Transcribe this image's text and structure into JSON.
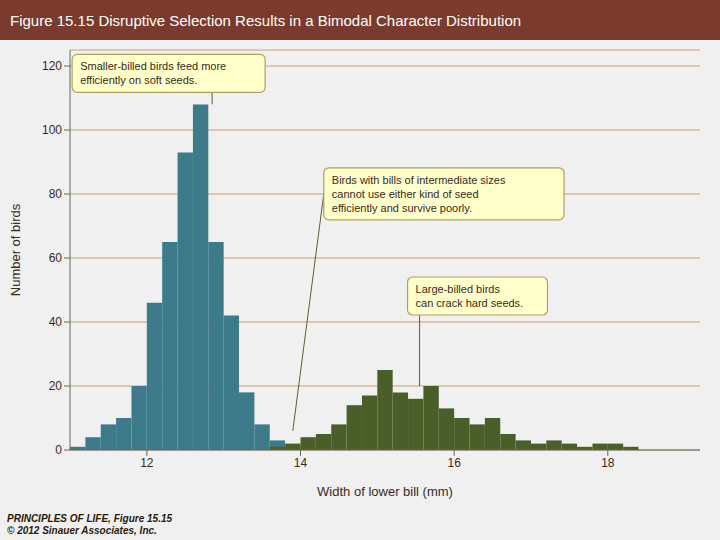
{
  "chart_data": {
    "type": "histogram",
    "title": "Figure 15.15  Disruptive Selection Results in a Bimodal Character Distribution",
    "footer": "PRINCIPLES OF LIFE, Figure 15.15\n© 2012 Sinauer Associates, Inc.",
    "xlabel": "Width of lower bill (mm)",
    "ylabel": "Number of birds",
    "series": [
      {
        "color": "#3d7a8a",
        "bins": [
          11.0,
          11.2,
          11.4,
          11.6,
          11.8,
          12.0,
          12.2,
          12.4,
          12.6,
          12.8,
          13.0,
          13.2,
          13.4,
          13.6,
          13.8,
          14.0
        ],
        "values": [
          1,
          4,
          8,
          10,
          20,
          46,
          65,
          93,
          108,
          65,
          42,
          18,
          8,
          3,
          1
        ]
      },
      {
        "color": "#4a5e2a",
        "bins": [
          13.6,
          13.8,
          14.0,
          14.2,
          14.4,
          14.6,
          14.8,
          15.0,
          15.2,
          15.4,
          15.6,
          15.8,
          16.0,
          16.2,
          16.4,
          16.6,
          16.8,
          17.0,
          17.2,
          17.4,
          17.6,
          17.8,
          18.0,
          18.2,
          18.4
        ],
        "values": [
          1,
          2,
          4,
          5,
          8,
          14,
          17,
          25,
          18,
          16,
          20,
          13,
          10,
          8,
          10,
          5,
          3,
          2,
          3,
          2,
          1,
          2,
          2,
          1
        ]
      }
    ],
    "xlim": [
      11.0,
      19.2
    ],
    "ylim": [
      0,
      125
    ],
    "xticks": [
      12,
      14,
      16,
      18
    ],
    "yticks": [
      0,
      20,
      40,
      60,
      80,
      100,
      120
    ],
    "grid": true,
    "annotations": [
      {
        "text": "Smaller-billed birds feed more\nefficiently on soft seeds.",
        "x": 12.85,
        "y": 108
      },
      {
        "text": "Birds with bills of intermediate sizes\ncannot use either kind of seed\nefficiently and survive poorly.",
        "x": 13.9,
        "y": 6
      },
      {
        "text": "Large-billed birds\ncan crack hard seeds.",
        "x": 15.55,
        "y": 20
      }
    ]
  }
}
